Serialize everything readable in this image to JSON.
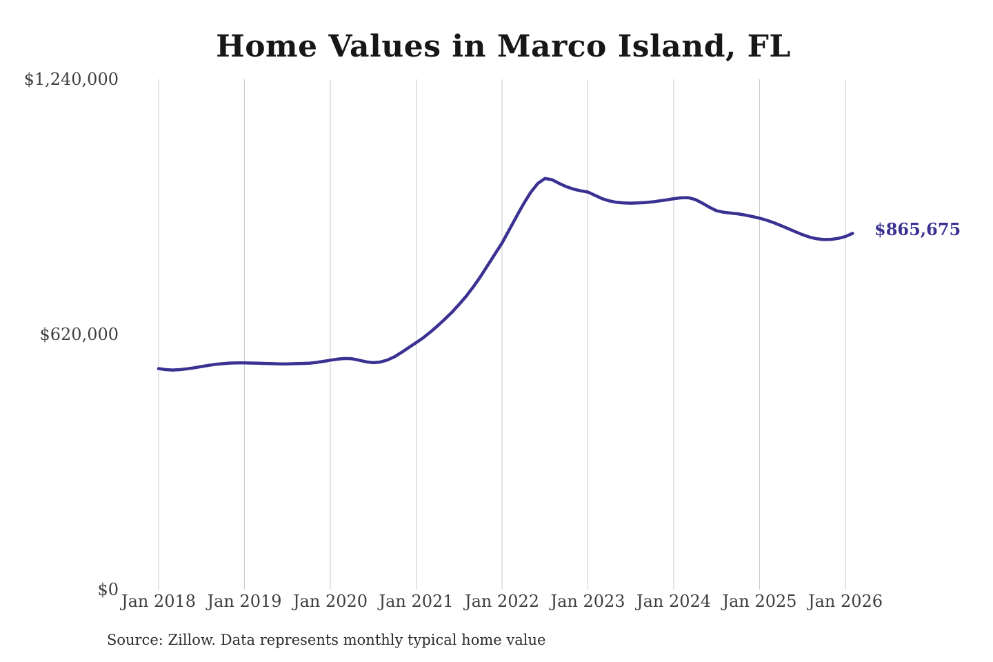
{
  "page": {
    "background_color": "#ffffff"
  },
  "chart_data": {
    "type": "line",
    "title": "Home Values in Marco Island, FL",
    "source_note": "Source: Zillow. Data represents monthly typical home value",
    "xlabel": "",
    "ylabel": "",
    "grid": "vertical-only",
    "gridline_color": "#c9c9c9",
    "axis_label_color": "#3f3f3f",
    "title_color": "#171717",
    "ylim": [
      0,
      1240000
    ],
    "y_ticks": [
      {
        "value": 0,
        "label": "$0"
      },
      {
        "value": 620000,
        "label": "$620,000"
      },
      {
        "value": 1240000,
        "label": "$1,240,000"
      }
    ],
    "x_ticks": [
      "Jan 2018",
      "Jan 2019",
      "Jan 2020",
      "Jan 2021",
      "Jan 2022",
      "Jan 2023",
      "Jan 2024",
      "Jan 2025",
      "Jan 2026"
    ],
    "frequency": "monthly",
    "x_start": "Jan 2018",
    "x_end": "Feb 2026",
    "series": [
      {
        "name": "Typical home value",
        "color": "#3a3192",
        "end_label": "$865,675",
        "last_value": 865675,
        "values": [
          537000,
          534500,
          533500,
          534500,
          536500,
          539000,
          542000,
          545000,
          547500,
          549000,
          550500,
          551000,
          551000,
          550500,
          550000,
          549500,
          549000,
          548500,
          548500,
          549000,
          549500,
          550000,
          552000,
          554500,
          557500,
          560000,
          561500,
          561000,
          557500,
          553500,
          551500,
          553000,
          558000,
          566000,
          577000,
          588500,
          600000,
          612000,
          626000,
          641000,
          657000,
          674000,
          693000,
          713000,
          736000,
          761000,
          788000,
          815000,
          842000,
          874000,
          906000,
          937000,
          965000,
          987000,
          999000,
          996000,
          987000,
          979000,
          973000,
          969000,
          966000,
          958000,
          950000,
          944500,
          941000,
          939500,
          939000,
          939500,
          940500,
          942000,
          944500,
          947000,
          950000,
          952000,
          952500,
          948000,
          939000,
          929000,
          920500,
          917000,
          915000,
          913000,
          910000,
          906500,
          902500,
          897500,
          891500,
          884500,
          877000,
          869500,
          862500,
          856500,
          852500,
          850500,
          851000,
          853500,
          858000,
          865675
        ]
      }
    ]
  }
}
